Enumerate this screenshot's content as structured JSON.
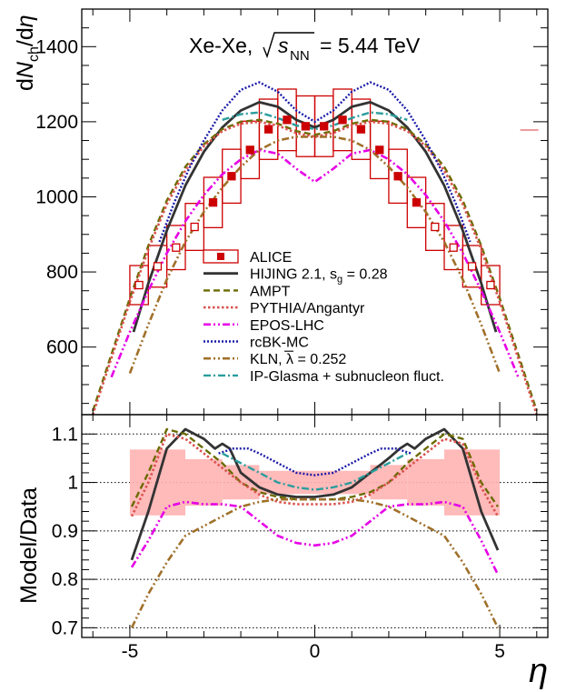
{
  "chart_data": {
    "type": "line",
    "title": "Xe-Xe, √s_NN = 5.44 TeV",
    "title_parts": {
      "system": "Xe-Xe,",
      "sym": "s",
      "sub": "NN",
      "value": "= 5.44 TeV"
    },
    "xlabel": "η",
    "xlim": [
      -6.3,
      6.3
    ],
    "x_ticks": [
      -5,
      0,
      5
    ],
    "top_panel": {
      "ylabel_parts": {
        "d": "d",
        "N": "N",
        "sub": "ch",
        "rest": "/d",
        "eta": "η"
      },
      "ylim": [
        420,
        1500
      ],
      "y_ticks": [
        600,
        800,
        1000,
        1200,
        1400
      ]
    },
    "bottom_panel": {
      "ylabel": "Model/Data",
      "ylim": [
        0.68,
        1.14
      ],
      "y_ticks": [
        0.7,
        0.8,
        0.9,
        1,
        1.1
      ],
      "y_tick_labels": [
        "0.7",
        "0.8",
        "0.9",
        "1",
        "1.1"
      ],
      "gridlines": [
        0.7,
        0.8,
        0.9,
        1,
        1.1
      ]
    },
    "data": {
      "name": "ALICE",
      "color": "#cc0000",
      "eta": [
        -4.75,
        -4.25,
        -3.75,
        -3.25,
        -2.75,
        -2.25,
        -1.75,
        -1.25,
        -0.75,
        -0.25,
        0.25,
        0.75,
        1.25,
        1.75,
        2.25,
        2.75,
        3.25,
        3.75,
        4.25,
        4.75
      ],
      "dndeta": [
        765,
        815,
        865,
        920,
        985,
        1055,
        1125,
        1180,
        1205,
        1188,
        1188,
        1205,
        1180,
        1125,
        1055,
        985,
        920,
        865,
        815,
        765
      ],
      "syst_frac": 0.068,
      "hollow_abs_eta_min": 3.0,
      "rel_error_band": [
        {
          "x0": -5.0,
          "x1": -3.5,
          "lo": 0.932,
          "hi": 1.068
        },
        {
          "x0": -3.5,
          "x1": -2.5,
          "lo": 0.952,
          "hi": 1.048
        },
        {
          "x0": -2.5,
          "x1": -1.5,
          "lo": 0.965,
          "hi": 1.036
        },
        {
          "x0": -1.5,
          "x1": 1.5,
          "lo": 0.976,
          "hi": 1.024
        },
        {
          "x0": 1.5,
          "x1": 2.5,
          "lo": 0.965,
          "hi": 1.036
        },
        {
          "x0": 2.5,
          "x1": 3.5,
          "lo": 0.952,
          "hi": 1.048
        },
        {
          "x0": 3.5,
          "x1": 5.0,
          "lo": 0.932,
          "hi": 1.068
        }
      ],
      "side_marker": {
        "eta": 5.8,
        "value": 1178
      }
    },
    "series": [
      {
        "name": "HIJING 2.1, s_g = 0.28",
        "label_main": "HIJING 2.1, s",
        "label_sub": "g",
        "label_after": " = 0.28",
        "color": "#333333",
        "dash": "",
        "width": 2.8,
        "x": [
          -4.9,
          -4.5,
          -4,
          -3.5,
          -3,
          -2.5,
          -2,
          -1.5,
          -1,
          -0.5,
          0,
          0.5,
          1,
          1.5,
          2,
          2.5,
          3,
          3.5,
          4,
          4.5,
          4.9
        ],
        "y": [
          640,
          770,
          910,
          1030,
          1120,
          1185,
          1230,
          1252,
          1240,
          1205,
          1185,
          1205,
          1240,
          1252,
          1230,
          1185,
          1120,
          1030,
          910,
          770,
          640
        ],
        "ratio_x": [
          -4.95,
          -4.5,
          -4,
          -3.5,
          -3,
          -2.7,
          -2.5,
          -2.3,
          -2,
          -1.5,
          -1,
          -0.5,
          0,
          0.5,
          1,
          1.5,
          2,
          2.3,
          2.5,
          2.7,
          3,
          3.5,
          4,
          4.5,
          4.95
        ],
        "ratio_y": [
          0.84,
          0.94,
          1.07,
          1.11,
          1.09,
          1.07,
          1.08,
          1.07,
          1.02,
          0.99,
          0.975,
          0.97,
          0.97,
          0.975,
          0.99,
          1.02,
          1.05,
          1.07,
          1.08,
          1.07,
          1.09,
          1.11,
          1.07,
          0.94,
          0.86
        ]
      },
      {
        "name": "AMPT",
        "label_main": "AMPT",
        "color": "#6b6b00",
        "dash": "7,4",
        "width": 2.4,
        "x": [
          -6,
          -5.5,
          -5,
          -4.5,
          -4,
          -3.5,
          -3,
          -2.5,
          -2,
          -1.5,
          -1,
          -0.5,
          0,
          0.5,
          1,
          1.5,
          2,
          2.5,
          3,
          3.5,
          4,
          4.5,
          5,
          5.5,
          6
        ],
        "y": [
          430,
          580,
          730,
          870,
          990,
          1080,
          1140,
          1180,
          1200,
          1205,
          1195,
          1175,
          1165,
          1175,
          1195,
          1205,
          1200,
          1180,
          1140,
          1080,
          990,
          870,
          730,
          580,
          430
        ],
        "ratio_x": [
          -4.95,
          -4.5,
          -4,
          -3.5,
          -3,
          -2.5,
          -2,
          -1.5,
          -1,
          -0.5,
          0,
          0.5,
          1,
          1.5,
          2,
          2.5,
          3,
          3.5,
          4,
          4.5,
          4.95
        ],
        "ratio_y": [
          0.95,
          1.02,
          1.11,
          1.1,
          1.07,
          1.04,
          1.0,
          0.98,
          0.97,
          0.965,
          0.965,
          0.965,
          0.97,
          0.98,
          1.0,
          1.04,
          1.07,
          1.1,
          1.09,
          1.0,
          0.95
        ]
      },
      {
        "name": "PYTHIA/Angantyr",
        "label_main": "PYTHIA/Angantyr",
        "color": "#d9534f",
        "dash": "2.5,2.5",
        "width": 2.6,
        "x": [
          -6,
          -5.5,
          -5,
          -4.5,
          -4,
          -3.5,
          -3,
          -2.5,
          -2,
          -1.5,
          -1,
          -0.5,
          0,
          0.5,
          1,
          1.5,
          2,
          2.5,
          3,
          3.5,
          4,
          4.5,
          5,
          5.5,
          6
        ],
        "y": [
          420,
          570,
          720,
          860,
          980,
          1070,
          1135,
          1175,
          1195,
          1200,
          1190,
          1170,
          1160,
          1170,
          1190,
          1200,
          1195,
          1175,
          1135,
          1070,
          980,
          860,
          720,
          570,
          420
        ],
        "ratio_x": [
          -4.95,
          -4.5,
          -4,
          -3.5,
          -3,
          -2.5,
          -2,
          -1.5,
          -1,
          -0.5,
          0,
          0.5,
          1,
          1.5,
          2,
          2.5,
          3,
          3.5,
          4,
          4.5,
          4.95
        ],
        "ratio_y": [
          0.93,
          1.0,
          1.1,
          1.09,
          1.06,
          1.03,
          1.0,
          0.975,
          0.96,
          0.955,
          0.955,
          0.955,
          0.96,
          0.975,
          1.0,
          1.03,
          1.06,
          1.09,
          1.08,
          0.99,
          0.93
        ]
      },
      {
        "name": "EPOS-LHC",
        "label_main": "EPOS-LHC",
        "color": "#e600e6",
        "dash": "8,3,2,3,2,3",
        "width": 2.6,
        "x": [
          -5.5,
          -5,
          -4.5,
          -4,
          -3.5,
          -3,
          -2.5,
          -2,
          -1.5,
          -1,
          -0.5,
          0,
          0.5,
          1,
          1.5,
          2,
          2.5,
          3,
          3.5,
          4,
          4.5,
          5,
          5.5
        ],
        "y": [
          520,
          640,
          750,
          850,
          935,
          1005,
          1060,
          1100,
          1125,
          1115,
          1075,
          1040,
          1075,
          1115,
          1125,
          1100,
          1060,
          1005,
          935,
          850,
          750,
          640,
          520
        ],
        "ratio_x": [
          -4.95,
          -4.5,
          -4,
          -3.5,
          -3,
          -2.5,
          -2,
          -1.5,
          -1,
          -0.5,
          0,
          0.5,
          1,
          1.5,
          2,
          2.5,
          3,
          3.5,
          4,
          4.5,
          4.95
        ],
        "ratio_y": [
          0.825,
          0.88,
          0.95,
          0.96,
          0.955,
          0.955,
          0.95,
          0.92,
          0.89,
          0.875,
          0.87,
          0.875,
          0.89,
          0.92,
          0.95,
          0.955,
          0.955,
          0.96,
          0.95,
          0.88,
          0.81
        ]
      },
      {
        "name": "rcBK-MC",
        "label_main": "rcBK-MC",
        "color": "#1a1aa8",
        "dash": "2,2",
        "width": 2.4,
        "x": [
          -4.2,
          -3.8,
          -3.4,
          -3,
          -2.5,
          -2,
          -1.5,
          -1,
          -0.5,
          0,
          0.5,
          1,
          1.5,
          2,
          2.5,
          3,
          3.4,
          3.8,
          4.2
        ],
        "y": [
          880,
          985,
          1075,
          1150,
          1230,
          1285,
          1305,
          1280,
          1230,
          1200,
          1230,
          1280,
          1305,
          1285,
          1230,
          1150,
          1075,
          985,
          880
        ],
        "ratio_x": [
          -2.6,
          -2.2,
          -1.8,
          -1.5,
          -1,
          -0.5,
          0,
          0.5,
          1,
          1.5,
          1.8,
          2.2,
          2.6
        ],
        "ratio_y": [
          1.06,
          1.07,
          1.07,
          1.06,
          1.04,
          1.02,
          1.015,
          1.02,
          1.04,
          1.06,
          1.07,
          1.07,
          1.06
        ]
      },
      {
        "name": "KLN, λ̄ = 0.252",
        "label_main": "KLN,",
        "label_lambda": "λ",
        "label_after": " = 0.252",
        "color": "#a0702a",
        "dash": "8,3,2,3,2,3",
        "width": 2.6,
        "x": [
          -5,
          -4.5,
          -4,
          -3.5,
          -3,
          -2.5,
          -2,
          -1.5,
          -1,
          -0.5,
          0,
          0.5,
          1,
          1.5,
          2,
          2.5,
          3,
          3.5,
          4,
          4.5,
          5
        ],
        "y": [
          530,
          660,
          780,
          880,
          960,
          1025,
          1080,
          1125,
          1150,
          1160,
          1160,
          1160,
          1150,
          1125,
          1080,
          1025,
          960,
          880,
          780,
          660,
          530
        ],
        "ratio_x": [
          -4.95,
          -4.5,
          -4,
          -3.5,
          -3,
          -2.5,
          -2,
          -1.5,
          -1,
          -0.5,
          0,
          0.5,
          1,
          1.5,
          2,
          2.5,
          3,
          3.5,
          4,
          4.5,
          4.95
        ],
        "ratio_y": [
          0.7,
          0.77,
          0.835,
          0.89,
          0.91,
          0.93,
          0.95,
          0.96,
          0.965,
          0.965,
          0.965,
          0.965,
          0.965,
          0.96,
          0.95,
          0.93,
          0.91,
          0.89,
          0.835,
          0.77,
          0.7
        ]
      },
      {
        "name": "IP-Glasma + subnucleon fluct.",
        "label_main": "IP-Glasma + subnucleon fluct.",
        "color": "#2a9d9d",
        "dash": "8,3,2,3",
        "width": 2.4,
        "x": [
          -2.5,
          -2,
          -1.5,
          -1,
          -0.5,
          0,
          0.5,
          1,
          1.5,
          2,
          2.5
        ],
        "y": [
          1205,
          1220,
          1225,
          1210,
          1190,
          1180,
          1190,
          1210,
          1225,
          1220,
          1205
        ],
        "ratio_x": [
          -2.5,
          -2,
          -1.5,
          -1,
          -0.5,
          0,
          0.5,
          1,
          1.5,
          2,
          2.5
        ],
        "ratio_y": [
          1.06,
          1.04,
          1.02,
          1.0,
          0.99,
          0.985,
          0.99,
          1.0,
          1.02,
          1.04,
          1.06
        ]
      }
    ]
  }
}
